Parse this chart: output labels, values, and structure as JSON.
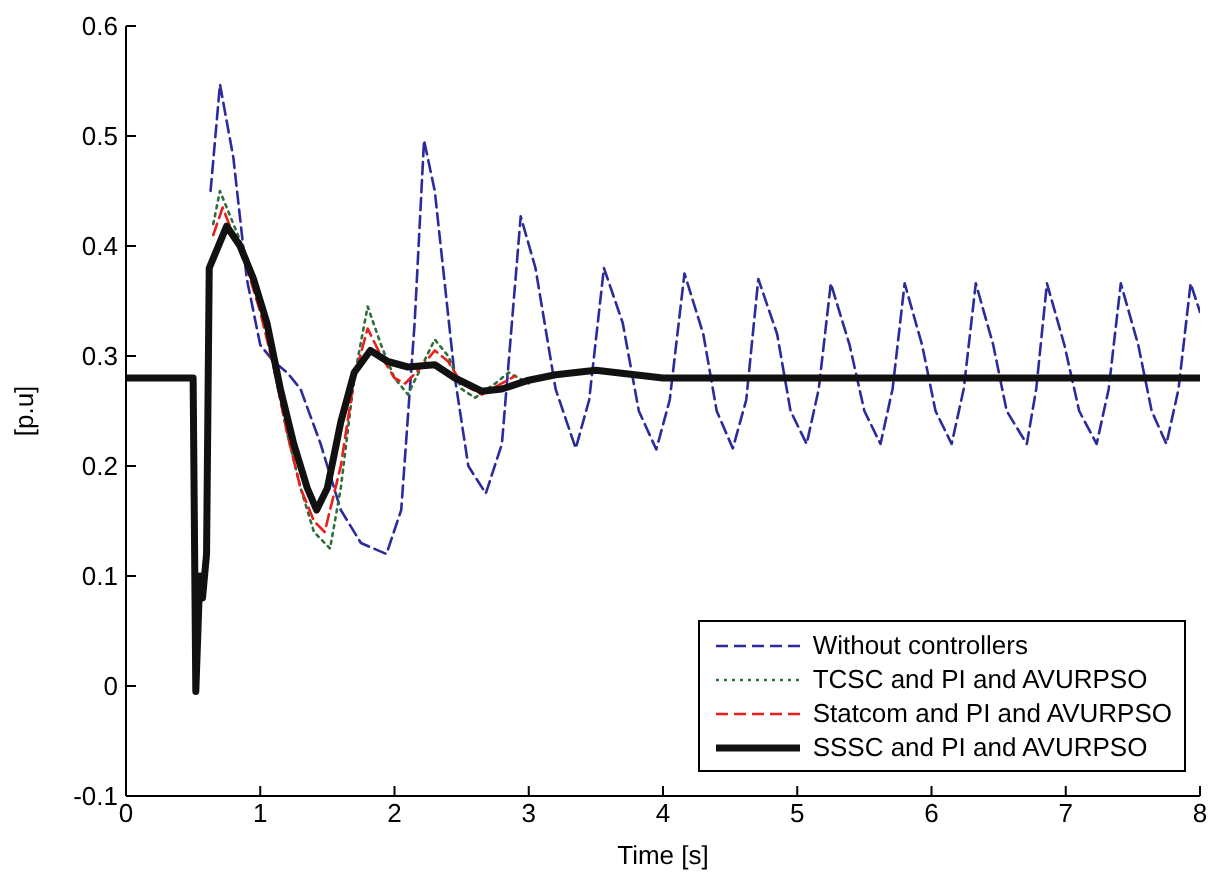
{
  "chart_data": {
    "type": "line",
    "xlabel": "Time [s]",
    "ylabel": "[p.u]",
    "xlim": [
      0,
      8
    ],
    "ylim": [
      -0.1,
      0.6
    ],
    "xticks": [
      0,
      1,
      2,
      3,
      4,
      5,
      6,
      7,
      8
    ],
    "yticks": [
      -0.1,
      0,
      0.1,
      0.2,
      0.3,
      0.4,
      0.5,
      0.6
    ],
    "grid": false,
    "legend": "bottom right",
    "marker": "none",
    "series": [
      {
        "name": "Without controllers",
        "color": "#2b2b9c",
        "line_style": "dashed",
        "x": [
          0.63,
          0.7,
          0.8,
          0.9,
          1.0,
          1.1,
          1.2,
          1.3,
          1.45,
          1.6,
          1.75,
          1.94,
          2.05,
          2.15,
          2.22,
          2.3,
          2.45,
          2.55,
          2.68,
          2.8,
          2.94,
          3.05,
          3.2,
          3.35,
          3.45,
          3.56,
          3.7,
          3.82,
          3.95,
          4.05,
          4.16,
          4.3,
          4.4,
          4.52,
          4.62,
          4.71,
          4.85,
          4.95,
          5.07,
          5.16,
          5.25,
          5.39,
          5.5,
          5.62,
          5.71,
          5.8,
          5.93,
          6.03,
          6.15,
          6.24,
          6.33,
          6.46,
          6.56,
          6.71,
          6.78,
          6.86,
          6.99,
          7.1,
          7.23,
          7.32,
          7.41,
          7.54,
          7.64,
          7.75,
          7.84,
          7.93,
          8.0
        ],
        "values": [
          0.45,
          0.547,
          0.48,
          0.37,
          0.31,
          0.295,
          0.285,
          0.27,
          0.22,
          0.16,
          0.13,
          0.12,
          0.16,
          0.33,
          0.496,
          0.45,
          0.28,
          0.2,
          0.175,
          0.22,
          0.427,
          0.38,
          0.27,
          0.216,
          0.26,
          0.38,
          0.33,
          0.25,
          0.215,
          0.26,
          0.375,
          0.32,
          0.25,
          0.216,
          0.26,
          0.37,
          0.32,
          0.25,
          0.22,
          0.27,
          0.366,
          0.31,
          0.25,
          0.22,
          0.27,
          0.366,
          0.31,
          0.25,
          0.22,
          0.27,
          0.366,
          0.31,
          0.25,
          0.22,
          0.27,
          0.366,
          0.31,
          0.25,
          0.22,
          0.27,
          0.366,
          0.31,
          0.25,
          0.22,
          0.27,
          0.366,
          0.34
        ]
      },
      {
        "name": "TCSC and PI and AVURPSO",
        "color": "#2f6e3a",
        "line_style": "dotted",
        "x": [
          0.65,
          0.7,
          0.8,
          0.9,
          1.0,
          1.1,
          1.2,
          1.3,
          1.4,
          1.52,
          1.6,
          1.7,
          1.8,
          1.9,
          2.0,
          2.1,
          2.2,
          2.3,
          2.4,
          2.5,
          2.6,
          2.75,
          2.85,
          3.0
        ],
        "values": [
          0.42,
          0.45,
          0.42,
          0.39,
          0.35,
          0.29,
          0.23,
          0.18,
          0.14,
          0.125,
          0.18,
          0.28,
          0.345,
          0.31,
          0.28,
          0.265,
          0.29,
          0.315,
          0.3,
          0.27,
          0.262,
          0.275,
          0.285,
          0.275
        ]
      },
      {
        "name": "Statcom and PI and AVURPSO",
        "color": "#e8201c",
        "line_style": "dashed",
        "x": [
          0.65,
          0.72,
          0.8,
          0.9,
          1.0,
          1.1,
          1.2,
          1.3,
          1.4,
          1.48,
          1.6,
          1.7,
          1.8,
          1.9,
          2.0,
          2.08,
          2.2,
          2.3,
          2.4,
          2.5,
          2.65,
          2.9
        ],
        "values": [
          0.41,
          0.435,
          0.41,
          0.38,
          0.34,
          0.29,
          0.23,
          0.18,
          0.15,
          0.14,
          0.2,
          0.28,
          0.325,
          0.3,
          0.28,
          0.275,
          0.29,
          0.305,
          0.295,
          0.275,
          0.265,
          0.282
        ]
      },
      {
        "name": "SSSC and PI and AVURPSO",
        "color": "#111111",
        "line_style": "solid",
        "x": [
          0,
          0.5,
          0.52,
          0.55,
          0.57,
          0.6,
          0.62,
          0.75,
          0.85,
          0.95,
          1.05,
          1.15,
          1.25,
          1.35,
          1.42,
          1.5,
          1.6,
          1.7,
          1.82,
          1.95,
          2.1,
          2.3,
          2.45,
          2.65,
          2.8,
          3.0,
          3.2,
          3.5,
          4.0,
          8.0
        ],
        "values": [
          0.28,
          0.28,
          -0.005,
          0.1,
          0.08,
          0.12,
          0.38,
          0.418,
          0.4,
          0.37,
          0.33,
          0.27,
          0.22,
          0.18,
          0.16,
          0.18,
          0.24,
          0.285,
          0.305,
          0.295,
          0.29,
          0.292,
          0.28,
          0.268,
          0.27,
          0.278,
          0.283,
          0.287,
          0.28,
          0.28
        ]
      }
    ]
  }
}
